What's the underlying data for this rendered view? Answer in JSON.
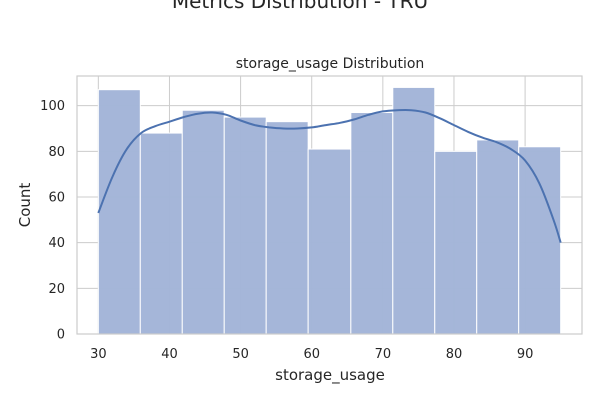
{
  "figure_title": "Metrics Distribution - TRU",
  "chart_data": {
    "type": "bar",
    "subtype": "histogram",
    "title": "storage_usage Distribution",
    "xlabel": "storage_usage",
    "ylabel": "Count",
    "xlim": [
      27,
      98
    ],
    "ylim": [
      0,
      113
    ],
    "xticks": [
      30,
      40,
      50,
      60,
      70,
      80,
      90
    ],
    "yticks": [
      0,
      20,
      40,
      60,
      80,
      100
    ],
    "grid": true,
    "bins": [
      {
        "start": 30.0,
        "end": 35.9,
        "count": 107
      },
      {
        "start": 35.9,
        "end": 41.8,
        "count": 88
      },
      {
        "start": 41.8,
        "end": 47.7,
        "count": 98
      },
      {
        "start": 47.7,
        "end": 53.6,
        "count": 95
      },
      {
        "start": 53.6,
        "end": 59.5,
        "count": 93
      },
      {
        "start": 59.5,
        "end": 65.5,
        "count": 81
      },
      {
        "start": 65.5,
        "end": 71.4,
        "count": 97
      },
      {
        "start": 71.4,
        "end": 77.3,
        "count": 108
      },
      {
        "start": 77.3,
        "end": 83.2,
        "count": 80
      },
      {
        "start": 83.2,
        "end": 89.1,
        "count": 85
      },
      {
        "start": 89.1,
        "end": 95.0,
        "count": 82
      }
    ],
    "kde": {
      "x": [
        30,
        32,
        34,
        36,
        38,
        40,
        42,
        44,
        46,
        48,
        50,
        52,
        54,
        56,
        58,
        60,
        62,
        64,
        66,
        68,
        70,
        72,
        74,
        76,
        78,
        80,
        82,
        84,
        86,
        88,
        90,
        92,
        94,
        95
      ],
      "y": [
        53,
        69,
        81,
        88,
        91,
        93,
        95,
        96.5,
        97,
        96,
        93.5,
        91.5,
        90.5,
        90,
        90,
        90.5,
        91.5,
        92.5,
        94,
        96,
        97.5,
        98,
        98,
        97,
        94.5,
        91.5,
        88.5,
        86,
        84,
        81,
        76,
        66,
        50,
        40
      ]
    },
    "colors": {
      "bar_fill": "#a3b5d8",
      "bar_edge": "#ffffff",
      "kde_line": "#4c72b0",
      "grid": "#cccccc",
      "frame": "#cccccc"
    }
  }
}
